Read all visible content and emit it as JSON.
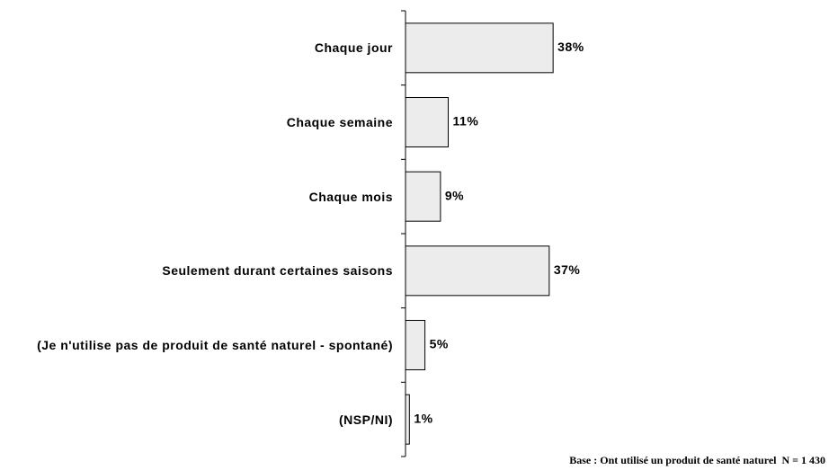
{
  "chart_data": {
    "type": "bar",
    "orientation": "horizontal",
    "categories": [
      "Chaque jour",
      "Chaque semaine",
      "Chaque mois",
      "Seulement durant certaines saisons",
      "(Je n'utilise pas de produit de santé naturel - spontané)",
      "(NSP/NI)"
    ],
    "values": [
      38,
      11,
      9,
      37,
      5,
      1
    ],
    "value_labels": [
      "38%",
      "11%",
      "9%",
      "37%",
      "5%",
      "1%"
    ],
    "color": "#ececec",
    "xlim": [
      0,
      100
    ],
    "footnote": "Base : Ont utilisé un produit de santé naturel  N = 1 430"
  }
}
